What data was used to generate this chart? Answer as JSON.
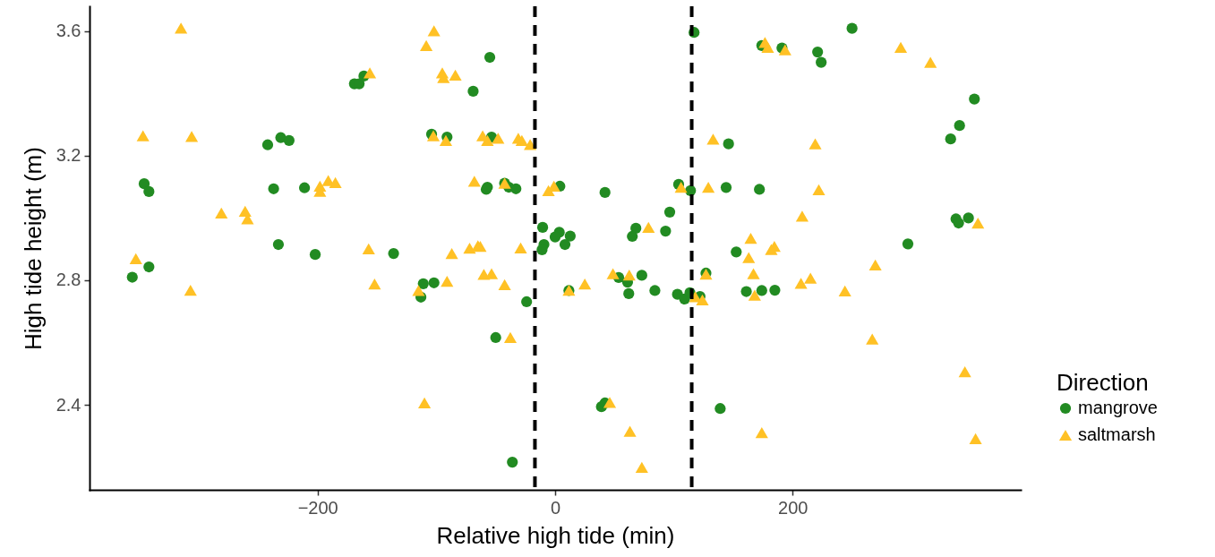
{
  "chart_data": {
    "type": "scatter",
    "xlabel": "Relative high tide (min)",
    "ylabel": "High tide height (m)",
    "legend_title": "Direction",
    "legend": "right",
    "grid": false,
    "xlim": [
      -392,
      392
    ],
    "xticks": [
      -200,
      0,
      200
    ],
    "ylim": [
      2.127,
      3.68
    ],
    "yticks": [
      2.4,
      2.8,
      3.2,
      3.6
    ],
    "ref_lines": [
      {
        "axis": "x",
        "value": -17,
        "color": "#000000",
        "line_style": "dashed"
      },
      {
        "axis": "x",
        "value": 115,
        "color": "#000000",
        "line_style": "dashed"
      }
    ],
    "series": [
      {
        "name": "mangrove",
        "color": "#228b22",
        "marker": "circle",
        "x": [
          -356,
          -346,
          -342,
          -342,
          -233,
          -237,
          -242,
          -231,
          -224,
          -211,
          -202,
          -169,
          -165,
          -161,
          -136,
          -55,
          -69,
          -104,
          -91,
          -53.5,
          -57,
          -58,
          -42.5,
          -39,
          -33,
          4,
          42,
          104,
          114,
          144,
          96.5,
          -10.5,
          3.5,
          0,
          12.7,
          -9.4,
          -11,
          8.3,
          68,
          65,
          93,
          -111,
          -102,
          -113,
          -24,
          53.5,
          61,
          73,
          62,
          84,
          103,
          109,
          113.5,
          122,
          11.6,
          127,
          -50,
          39,
          42,
          -36,
          117,
          139,
          146,
          250,
          174,
          191,
          221,
          224,
          353,
          340.5,
          333,
          172,
          337.5,
          339.7,
          348,
          297,
          152.5,
          161,
          174,
          185
        ],
        "values": [
          2.81,
          3.11,
          3.085,
          2.843,
          2.915,
          3.094,
          3.235,
          3.258,
          3.249,
          3.097,
          2.883,
          3.431,
          3.431,
          3.456,
          2.886,
          3.516,
          3.407,
          3.269,
          3.26,
          3.26,
          3.099,
          3.092,
          3.112,
          3.099,
          3.094,
          3.102,
          3.082,
          3.108,
          3.088,
          3.098,
          3.019,
          2.97,
          2.954,
          2.939,
          2.942,
          2.915,
          2.898,
          2.915,
          2.967,
          2.941,
          2.958,
          2.789,
          2.792,
          2.746,
          2.731,
          2.809,
          2.794,
          2.816,
          2.757,
          2.767,
          2.755,
          2.74,
          2.76,
          2.748,
          2.767,
          2.823,
          2.616,
          2.394,
          2.406,
          2.216,
          3.596,
          2.388,
          3.238,
          3.609,
          3.554,
          3.546,
          3.533,
          3.5,
          3.382,
          3.297,
          3.254,
          3.092,
          2.997,
          2.984,
          3.0,
          2.917,
          2.891,
          2.764,
          2.767,
          2.768
        ]
      },
      {
        "name": "saltmarsh",
        "color": "#ffc125",
        "marker": "triangle",
        "x": [
          -315,
          -347,
          -306,
          -281,
          -261,
          -259,
          -198,
          -198,
          -191,
          -185,
          -156,
          -353,
          -307,
          -157,
          -152,
          -102,
          -108.5,
          -95,
          -94,
          -84,
          -102.5,
          -92,
          -61,
          -57,
          -48,
          -31,
          -28,
          -21,
          -68,
          -42.5,
          -5.6,
          -1,
          -87,
          -72,
          -65,
          -63,
          -29,
          -91,
          -115,
          -60,
          -53.5,
          -42.5,
          11.6,
          25,
          48.7,
          62.4,
          78.6,
          118,
          124,
          127,
          106,
          129,
          133,
          -37.7,
          -110,
          46,
          63,
          73,
          176.7,
          179,
          193.6,
          291,
          316,
          219,
          222,
          208,
          164.7,
          184.6,
          182,
          163,
          167,
          269.6,
          215,
          207,
          244,
          168,
          267,
          356,
          345,
          174,
          354
        ],
        "values": [
          3.61,
          3.264,
          3.262,
          3.016,
          3.022,
          2.997,
          3.102,
          3.086,
          3.12,
          3.114,
          3.466,
          2.869,
          2.768,
          2.901,
          2.788,
          3.601,
          3.554,
          3.466,
          3.451,
          3.459,
          3.264,
          3.249,
          3.264,
          3.249,
          3.256,
          3.256,
          3.249,
          3.236,
          3.118,
          3.112,
          3.088,
          3.102,
          2.886,
          2.903,
          2.911,
          2.909,
          2.904,
          2.797,
          2.767,
          2.819,
          2.821,
          2.786,
          2.768,
          2.788,
          2.821,
          2.817,
          2.97,
          2.747,
          2.737,
          2.82,
          3.099,
          3.099,
          3.253,
          2.616,
          2.406,
          2.408,
          2.315,
          2.199,
          3.564,
          3.548,
          3.54,
          3.548,
          3.5,
          3.238,
          3.091,
          3.006,
          2.935,
          2.909,
          2.899,
          2.873,
          2.821,
          2.849,
          2.807,
          2.79,
          2.766,
          2.752,
          2.611,
          2.984,
          2.506,
          2.311,
          2.291
        ]
      }
    ]
  }
}
